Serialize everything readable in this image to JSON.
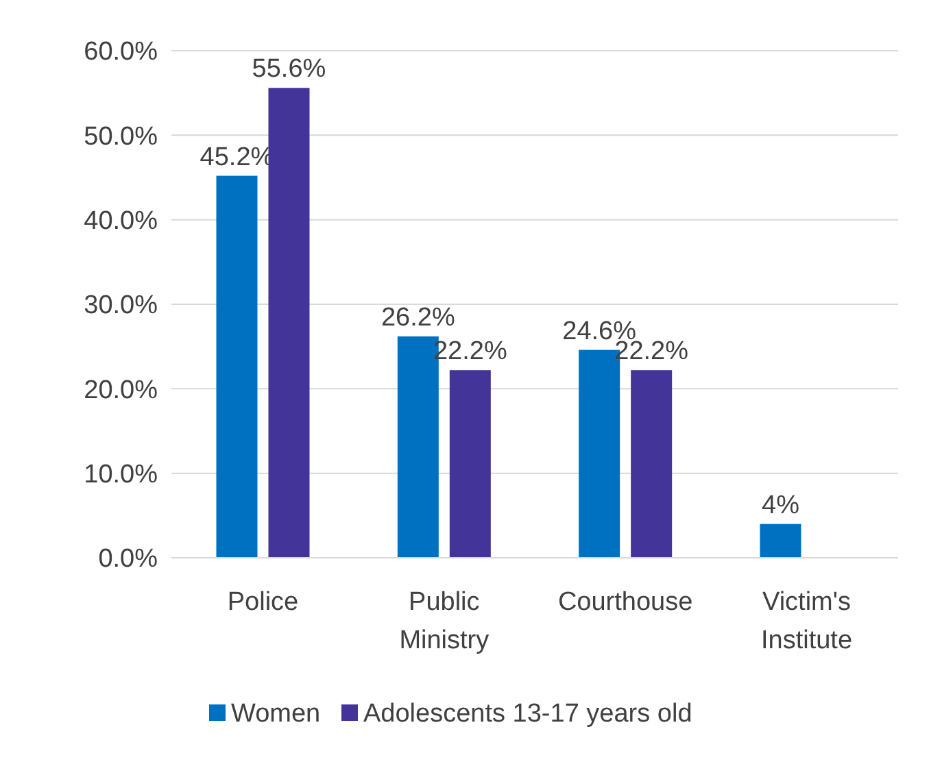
{
  "chart_data": {
    "type": "bar",
    "categories": [
      "Police",
      "Public Ministry",
      "Courthouse",
      "Victim's Institute"
    ],
    "series": [
      {
        "name": "Women",
        "color": "#0070c0",
        "values": [
          45.2,
          26.2,
          24.6,
          4
        ],
        "value_labels": [
          "45.2%",
          "26.2%",
          "24.6%",
          "4%"
        ]
      },
      {
        "name": "Adolescents 13-17 years old",
        "color": "#433499",
        "values": [
          55.6,
          22.2,
          22.2,
          null
        ],
        "value_labels": [
          "55.6%",
          "22.2%",
          "22.2%",
          null
        ]
      }
    ],
    "ylim": [
      0,
      60
    ],
    "yticks": [
      {
        "value": 0,
        "label": "0.0%"
      },
      {
        "value": 10,
        "label": "10.0%"
      },
      {
        "value": 20,
        "label": "20.0%"
      },
      {
        "value": 30,
        "label": "30.0%"
      },
      {
        "value": 40,
        "label": "40.0%"
      },
      {
        "value": 50,
        "label": "50.0%"
      },
      {
        "value": 60,
        "label": "60.0%"
      }
    ],
    "grid": "y",
    "legend": "bottom"
  }
}
